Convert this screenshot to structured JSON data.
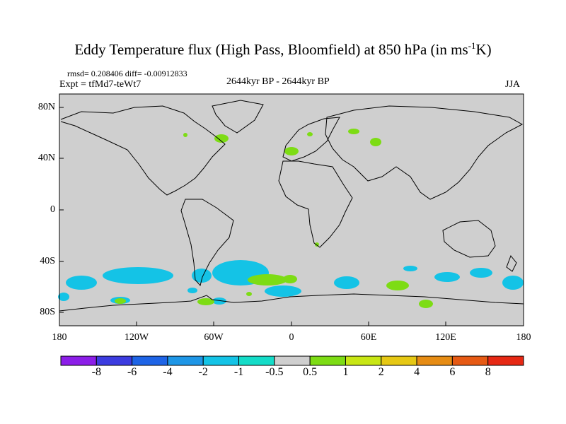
{
  "title": {
    "main": "Eddy Temperature flux (High Pass, Bloomfield) at 850 hPa (in ms",
    "sup": "-1",
    "end": "K)"
  },
  "stats": "rmsd= 0.208406 diff= -0.00912833",
  "expt": "Expt = tfMd7-teWt7",
  "period": "2644kyr BP - 2644kyr BP",
  "season": "JJA",
  "lat_labels": [
    "80N",
    "40N",
    "0",
    "40S",
    "80S"
  ],
  "lon_labels": [
    "180",
    "120W",
    "60W",
    "0",
    "60E",
    "120E",
    "180"
  ],
  "colorbar": {
    "labels": [
      "-8",
      "-6",
      "-4",
      "-2",
      "-1",
      "-0.5",
      "0.5",
      "1",
      "2",
      "4",
      "6",
      "8"
    ],
    "colors": [
      "#8c1ee8",
      "#3c3ce0",
      "#1e64e6",
      "#1e96e6",
      "#14c3e6",
      "#14dcc8",
      "#cfcfcf",
      "#7ddc14",
      "#c8e614",
      "#e6c814",
      "#e68c14",
      "#e65a14",
      "#e62814"
    ]
  },
  "colors": {
    "ocean_land_fill": "#cfcfcf",
    "positive": "#7ddc14",
    "negative": "#14c3e6",
    "coast": "#000000"
  }
}
